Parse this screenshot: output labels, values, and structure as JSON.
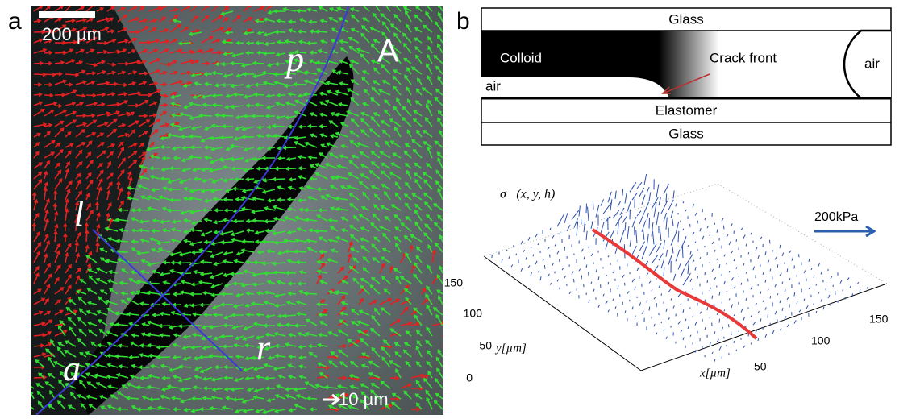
{
  "panel_a": {
    "label": "a",
    "scale_bar": "200  µm",
    "region": "A",
    "markers": [
      "p",
      "l",
      "r",
      "a"
    ],
    "arrow_scale": "10  µm"
  },
  "panel_b": {
    "label": "b",
    "schematic": {
      "top_layer": "Glass",
      "fluid": "Colloid",
      "crack_front": "Crack front",
      "air_left": "air",
      "air_right": "air",
      "elastomer": "Elastomer",
      "bottom_layer": "Glass"
    },
    "plot": {
      "title": "σ⃗(x, y, h)",
      "reference_arrow": "200kPa",
      "y_ticks": [
        "150",
        "100",
        "50",
        "0"
      ],
      "x_ticks": [
        "50",
        "100",
        "150"
      ],
      "y_label": "y[µm]",
      "x_label": "x[µm]"
    }
  }
}
